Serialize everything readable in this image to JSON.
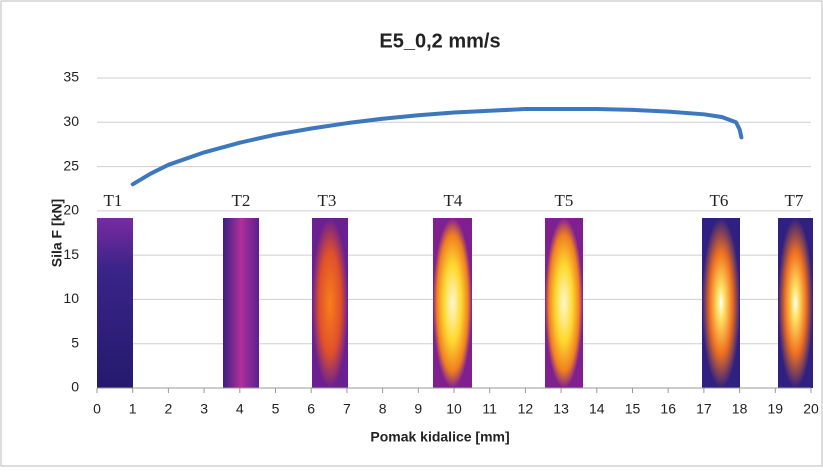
{
  "chart_data": {
    "type": "line",
    "title": "E5_0,2 mm/s",
    "x_label": "Pomak kidalice [mm]",
    "y_label": "Sila F [kN]",
    "x": [
      1,
      1.5,
      2,
      3,
      4,
      5,
      6,
      7,
      8,
      9,
      10,
      11,
      12,
      13,
      14,
      15,
      16,
      17,
      17.5,
      17.9,
      18,
      18.05
    ],
    "series": [
      {
        "color": "#3d78bf",
        "values": [
          23,
          24.2,
          25.2,
          26.6,
          27.7,
          28.6,
          29.3,
          29.9,
          30.4,
          30.8,
          31.1,
          31.3,
          31.5,
          31.5,
          31.5,
          31.4,
          31.2,
          30.9,
          30.6,
          30,
          29.2,
          28.3
        ]
      }
    ],
    "xlim": [
      0,
      20
    ],
    "xticks": [
      0,
      1,
      2,
      3,
      4,
      5,
      6,
      7,
      8,
      9,
      10,
      11,
      12,
      13,
      14,
      15,
      16,
      17,
      18,
      19,
      20
    ],
    "ylim": [
      0,
      35
    ],
    "yticks": [
      0,
      5,
      10,
      15,
      20,
      25,
      30,
      35
    ],
    "grid": true,
    "annotations": [
      "T1",
      "T2",
      "T3",
      "T4",
      "T5",
      "T6",
      "T7"
    ]
  }
}
